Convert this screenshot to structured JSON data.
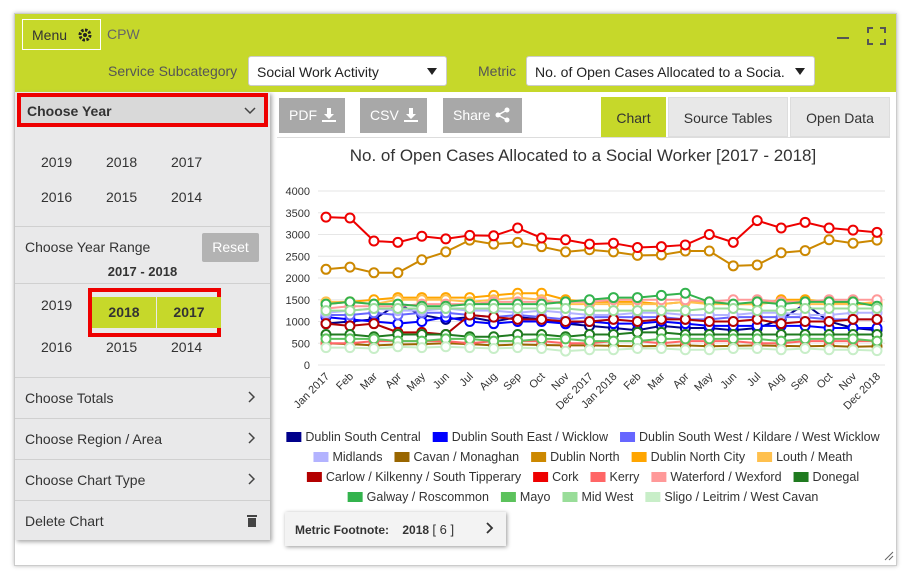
{
  "header": {
    "menu": "Menu",
    "app": "CPW",
    "subcategory_label": "Service Subcategory",
    "subcategory": "Social Work Activity",
    "metric_label": "Metric",
    "metric": "No. of Open Cases Allocated to a Socia."
  },
  "sidebar": {
    "choose_year": "Choose Year",
    "years": [
      "2019",
      "2018",
      "2017",
      "2016",
      "2015",
      "2014"
    ],
    "range_label": "Choose Year Range",
    "reset": "Reset",
    "range": "2017 - 2018",
    "range_years": [
      "2019",
      "2018",
      "2017",
      "2016",
      "2015",
      "2014"
    ],
    "items": [
      "Choose Totals",
      "Choose Region / Area",
      "Choose Chart Type",
      "Delete Chart"
    ]
  },
  "toolbar": {
    "buttons": [
      "PDF",
      "CSV",
      "Share"
    ],
    "tabs": [
      "Chart",
      "Source Tables",
      "Open Data"
    ]
  },
  "footnote": {
    "label": "Metric Footnote:",
    "year": "2018",
    "count": "[ 6 ]"
  },
  "chart_data": {
    "type": "line",
    "title": "No. of Open Cases Allocated to a Social Worker [2017 - 2018]",
    "categories": [
      "Jan 2017",
      "Feb",
      "Mar",
      "Apr",
      "May",
      "Jun",
      "Jul",
      "Aug",
      "Sep",
      "Oct",
      "Nov",
      "Dec 2017",
      "Jan 2018",
      "Feb",
      "Mar",
      "Apr",
      "May",
      "Jun",
      "Jul",
      "Aug",
      "Sep",
      "Oct",
      "Nov",
      "Dec 2018"
    ],
    "ylim": [
      0,
      4000
    ],
    "yticks": [
      0,
      500,
      1000,
      1500,
      2000,
      2500,
      3000,
      3500,
      4000
    ],
    "grid": true,
    "series": [
      {
        "name": "Dublin South Central",
        "color": "#00008b",
        "values": [
          950,
          1000,
          1050,
          1400,
          1150,
          1050,
          1100,
          1000,
          1100,
          1050,
          950,
          900,
          850,
          800,
          900,
          850,
          850,
          800,
          850,
          1050,
          1400,
          1000,
          850,
          800
        ]
      },
      {
        "name": "Dublin South East / Wicklow",
        "color": "#0000ff",
        "values": [
          1100,
          1050,
          1000,
          950,
          1000,
          1100,
          1000,
          950,
          1000,
          1000,
          950,
          1000,
          950,
          950,
          1000,
          950,
          900,
          900,
          900,
          900,
          900,
          850,
          850,
          850
        ]
      },
      {
        "name": "Dublin South West / Kildare / West Wicklow",
        "color": "#6666ff",
        "values": [
          1150,
          1150,
          1200,
          1150,
          1200,
          1200,
          1150,
          1100,
          1150,
          1100,
          1050,
          1100,
          1100,
          1100,
          1100,
          1050,
          1050,
          1100,
          1100,
          1100,
          1100,
          1050,
          1050,
          1050
        ]
      },
      {
        "name": "Midlands",
        "color": "#b3b3ff",
        "values": [
          1200,
          1250,
          1300,
          1250,
          1250,
          1300,
          1250,
          1250,
          1200,
          1250,
          1200,
          1150,
          1150,
          1200,
          1200,
          1150,
          1150,
          1150,
          1200,
          1200,
          1150,
          1150,
          1200,
          1200
        ]
      },
      {
        "name": "Cavan / Monaghan",
        "color": "#996600",
        "values": [
          500,
          480,
          450,
          470,
          480,
          500,
          480,
          450,
          470,
          460,
          450,
          450,
          440,
          430,
          440,
          450,
          430,
          440,
          450,
          440,
          430,
          440,
          420,
          430
        ]
      },
      {
        "name": "Dublin North",
        "color": "#cc8800",
        "values": [
          2200,
          2250,
          2120,
          2120,
          2420,
          2600,
          2870,
          2780,
          2820,
          2720,
          2600,
          2650,
          2600,
          2520,
          2530,
          2620,
          2620,
          2280,
          2300,
          2580,
          2630,
          2880,
          2800,
          2870
        ]
      },
      {
        "name": "Dublin North City",
        "color": "#ffa500",
        "values": [
          1400,
          1450,
          1500,
          1550,
          1550,
          1550,
          1550,
          1600,
          1650,
          1650,
          1500,
          1450,
          1450,
          1450,
          1400,
          1450,
          1450,
          1400,
          1400,
          1500,
          1500,
          1450,
          1400,
          1400
        ]
      },
      {
        "name": "Louth / Meath",
        "color": "#ffc04d",
        "values": [
          1450,
          1450,
          1400,
          1500,
          1500,
          1500,
          1450,
          1500,
          1550,
          1500,
          1400,
          1400,
          1400,
          1400,
          1400,
          1450,
          1400,
          1400,
          1400,
          1450,
          1400,
          1400,
          1400,
          1450
        ]
      },
      {
        "name": "Carlow / Kilkenny / South Tipperary",
        "color": "#b30000",
        "values": [
          950,
          900,
          950,
          750,
          750,
          700,
          1150,
          1100,
          1050,
          1050,
          1000,
          1000,
          1050,
          1000,
          1050,
          1050,
          1000,
          1000,
          1050,
          950,
          1000,
          1000,
          1050,
          1050
        ]
      },
      {
        "name": "Cork",
        "color": "#ee0000",
        "values": [
          3400,
          3380,
          2850,
          2820,
          2960,
          2900,
          2980,
          2970,
          3150,
          2920,
          2880,
          2780,
          2800,
          2700,
          2720,
          2760,
          3000,
          2820,
          3320,
          3150,
          3280,
          3150,
          3100,
          3050
        ]
      },
      {
        "name": "Kerry",
        "color": "#ff6666",
        "values": [
          500,
          500,
          550,
          550,
          550,
          550,
          500,
          550,
          550,
          550,
          500,
          500,
          550,
          550,
          500,
          550,
          550,
          550,
          500,
          500,
          550,
          550,
          550,
          550
        ]
      },
      {
        "name": "Waterford / Wexford",
        "color": "#ff9999",
        "values": [
          1300,
          1350,
          1350,
          1350,
          1400,
          1400,
          1400,
          1450,
          1450,
          1450,
          1450,
          1450,
          1500,
          1500,
          1500,
          1500,
          1450,
          1500,
          1500,
          1450,
          1450,
          1500,
          1500,
          1500
        ]
      },
      {
        "name": "Donegal",
        "color": "#1f7a1f",
        "values": [
          700,
          700,
          650,
          700,
          700,
          700,
          650,
          650,
          700,
          700,
          650,
          700,
          700,
          750,
          750,
          700,
          700,
          700,
          700,
          700,
          700,
          700,
          700,
          700
        ]
      },
      {
        "name": "Galway / Roscommon",
        "color": "#33b34d",
        "values": [
          1400,
          1450,
          1400,
          1400,
          1350,
          1350,
          1400,
          1400,
          1400,
          1400,
          1450,
          1500,
          1550,
          1550,
          1600,
          1650,
          1450,
          1400,
          1450,
          1400,
          1450,
          1450,
          1450,
          1350
        ]
      },
      {
        "name": "Mayo",
        "color": "#5cc25c",
        "values": [
          600,
          600,
          600,
          550,
          550,
          600,
          600,
          550,
          550,
          600,
          600,
          550,
          550,
          550,
          600,
          600,
          600,
          600,
          600,
          550,
          600,
          600,
          600,
          550
        ]
      },
      {
        "name": "Mid West",
        "color": "#99dd99",
        "values": [
          1250,
          1250,
          1300,
          1300,
          1300,
          1300,
          1300,
          1300,
          1300,
          1300,
          1300,
          1250,
          1250,
          1250,
          1250,
          1250,
          1300,
          1300,
          1250,
          1250,
          1300,
          1300,
          1300,
          1300
        ]
      },
      {
        "name": "Sligo / Leitrim / West Cavan",
        "color": "#c8eec8",
        "values": [
          400,
          400,
          380,
          420,
          400,
          420,
          400,
          380,
          400,
          380,
          320,
          350,
          350,
          380,
          380,
          350,
          350,
          380,
          380,
          350,
          380,
          350,
          350,
          330
        ]
      }
    ]
  }
}
